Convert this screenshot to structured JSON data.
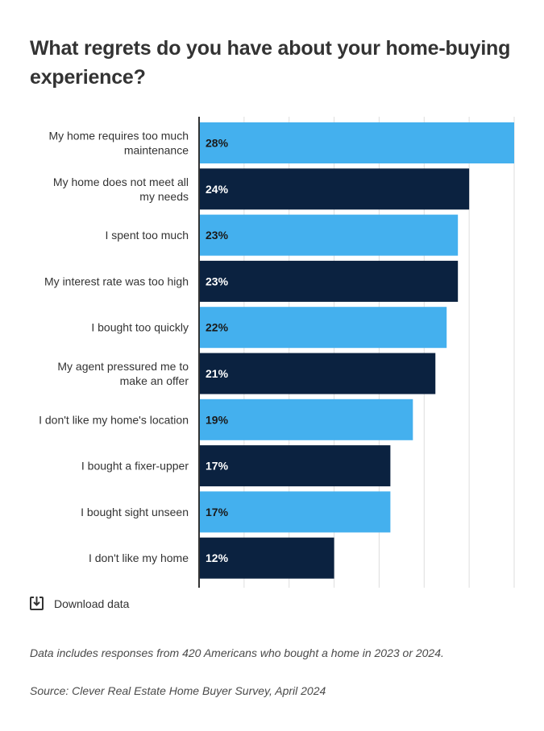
{
  "title": "What regrets do you have about your home-buying experience?",
  "download": {
    "label": "Download data",
    "icon": "download-icon"
  },
  "note": "Data includes responses from 420 Americans who bought a home in 2023 or 2024.",
  "source": "Source: Clever Real Estate Home Buyer Survey, April 2024",
  "colors": {
    "bar_light": "#44b0ee",
    "bar_dark": "#0b2240",
    "axis": "#333333",
    "grid": "#dedede",
    "label_on_light": "#1a1a1a",
    "label_on_dark": "#ffffff"
  },
  "chart_data": {
    "type": "bar",
    "orientation": "horizontal",
    "title": "What regrets do you have about your home-buying experience?",
    "categories": [
      [
        "My home requires too much",
        "maintenance"
      ],
      [
        "My home does not meet all",
        "my needs"
      ],
      [
        "I spent too much"
      ],
      [
        "My interest rate was too high"
      ],
      [
        "I bought too quickly"
      ],
      [
        "My agent pressured me to",
        "make an offer"
      ],
      [
        "I don't like my home's location"
      ],
      [
        "I bought a fixer-upper"
      ],
      [
        "I bought sight unseen"
      ],
      [
        "I don't like my home"
      ]
    ],
    "values": [
      28,
      24,
      23,
      23,
      22,
      21,
      19,
      17,
      17,
      12
    ],
    "value_labels": [
      "28%",
      "24%",
      "23%",
      "23%",
      "22%",
      "21%",
      "19%",
      "17%",
      "17%",
      "12%"
    ],
    "xlim": [
      0,
      28
    ],
    "grid": true,
    "legend": "none"
  }
}
